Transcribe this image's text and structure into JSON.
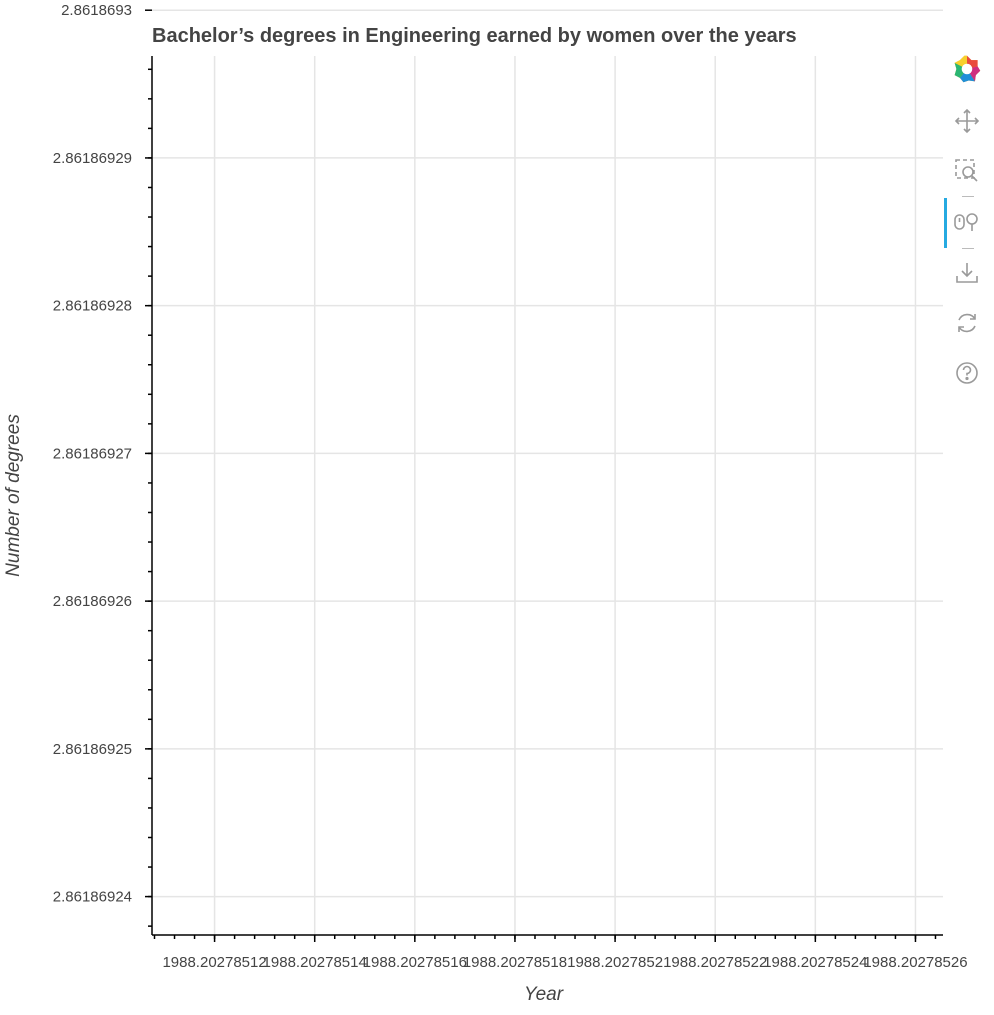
{
  "chart_data": {
    "type": "line",
    "title": "Bachelor’s degrees in Engineering earned by women over the years",
    "xlabel": "Year",
    "ylabel": "Number of degrees",
    "xlim": [
      1988.2027851075,
      1988.2027852655
    ],
    "ylim": [
      2.8618692374,
      2.8618692969
    ],
    "x_major_ticks": [
      1988.20278512,
      1988.20278514,
      1988.20278516,
      1988.20278518,
      1988.2027852,
      1988.20278522,
      1988.20278524,
      1988.20278526
    ],
    "x_tick_labels": [
      "1988.20278512",
      "1988.20278514",
      "1988.20278516",
      "1988.20278518",
      "1988.2027852",
      "1988.20278522",
      "1988.20278524",
      "1988.20278526"
    ],
    "y_major_ticks": [
      2.86186924,
      2.86186925,
      2.86186926,
      2.86186927,
      2.86186928,
      2.86186929,
      2.8618693
    ],
    "y_tick_labels": [
      "2.86186924",
      "2.86186925",
      "2.86186926",
      "2.86186927",
      "2.86186928",
      "2.86186929",
      "2.8618693"
    ],
    "series": [
      {
        "values": []
      }
    ],
    "grid": true,
    "legend": "none"
  },
  "toolbar": {
    "tools": [
      {
        "icon": "bokeh-logo-icon",
        "active": false
      },
      {
        "icon": "pan-icon",
        "active": false
      },
      {
        "icon": "box-zoom-icon",
        "active": false
      },
      {
        "icon": "wheel-zoom-icon",
        "active": true
      },
      {
        "icon": "save-icon",
        "active": false
      },
      {
        "icon": "reset-icon",
        "active": false
      },
      {
        "icon": "help-icon",
        "active": false
      }
    ]
  },
  "colors": {
    "grid": "#e5e5e5",
    "axis": "#000000",
    "text": "#444444",
    "active_tool": "#26aae1",
    "icon": "#9a9a9a"
  }
}
